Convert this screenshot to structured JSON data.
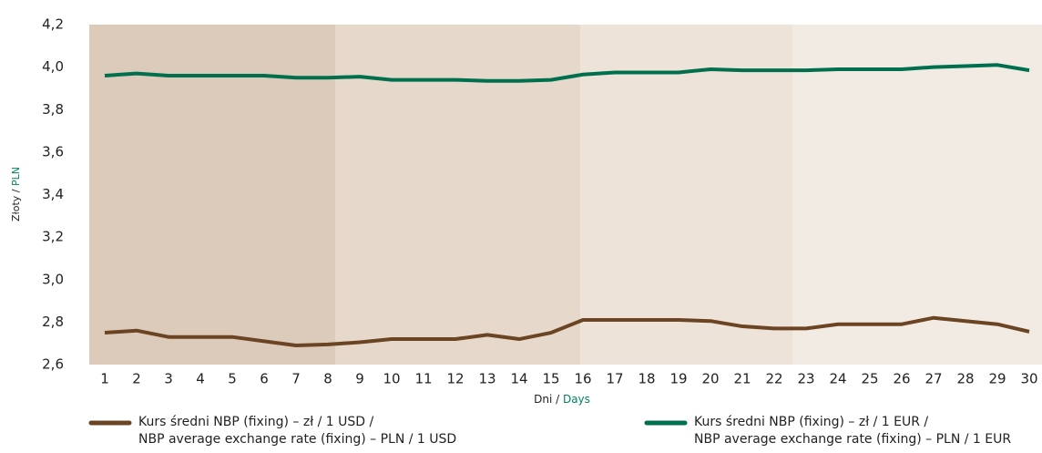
{
  "chart_data": {
    "type": "line",
    "ylabel": [
      "Złoty / ",
      "PLN"
    ],
    "xlabel": [
      "Dni / ",
      "Days"
    ],
    "categories": [
      "1",
      "2",
      "3",
      "4",
      "5",
      "6",
      "7",
      "8",
      "9",
      "10",
      "11",
      "12",
      "13",
      "14",
      "15",
      "16",
      "17",
      "18",
      "19",
      "20",
      "21",
      "22",
      "23",
      "24",
      "25",
      "26",
      "27",
      "28",
      "29",
      "30"
    ],
    "series": [
      {
        "name": [
          "Kurs średni NBP (fixing) – zł / 1 USD /",
          "NBP average exchange rate (fixing) – PLN / 1 USD"
        ],
        "color": "#6b4423",
        "values": [
          2.75,
          2.76,
          2.73,
          2.73,
          2.73,
          2.71,
          2.69,
          2.695,
          2.705,
          2.72,
          2.72,
          2.72,
          2.74,
          2.72,
          2.75,
          2.81,
          2.81,
          2.81,
          2.81,
          2.805,
          2.78,
          2.77,
          2.77,
          2.79,
          2.79,
          2.79,
          2.82,
          2.805,
          2.79,
          2.755
        ]
      },
      {
        "name": [
          "Kurs średni NBP (fixing) – zł / 1 EUR /",
          "NBP average exchange rate (fixing) – PLN / 1 EUR"
        ],
        "color": "#006f4e",
        "values": [
          3.96,
          3.97,
          3.96,
          3.96,
          3.96,
          3.96,
          3.95,
          3.95,
          3.955,
          3.94,
          3.94,
          3.94,
          3.935,
          3.935,
          3.94,
          3.965,
          3.975,
          3.975,
          3.975,
          3.99,
          3.985,
          3.985,
          3.985,
          3.99,
          3.99,
          3.99,
          4.0,
          4.005,
          4.01,
          3.985
        ]
      }
    ],
    "ylim": [
      2.6,
      4.2
    ],
    "yticks": [
      {
        "value": 2.6,
        "label": "2,6"
      },
      {
        "value": 2.8,
        "label": "2,8"
      },
      {
        "value": 3.0,
        "label": "3,0"
      },
      {
        "value": 3.2,
        "label": "3,2"
      },
      {
        "value": 3.4,
        "label": "3,4"
      },
      {
        "value": 3.6,
        "label": "3,6"
      },
      {
        "value": 3.8,
        "label": "3,8"
      },
      {
        "value": 4.0,
        "label": "4,0"
      },
      {
        "value": 4.2,
        "label": "4,2"
      }
    ],
    "accent": "#00845f"
  }
}
